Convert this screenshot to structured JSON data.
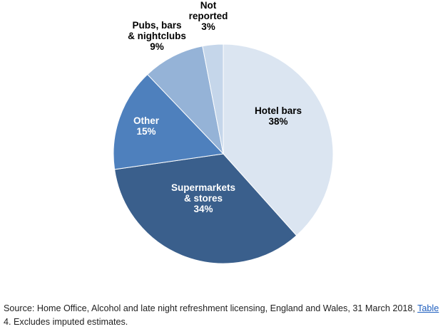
{
  "chart_data": {
    "type": "pie",
    "title": "",
    "start_angle_deg": 0,
    "direction": "clockwise",
    "slices": [
      {
        "label_lines": [
          "Hotel bars",
          "38%"
        ],
        "value": 38,
        "color": "#dbe5f1",
        "text_color": "#000000"
      },
      {
        "label_lines": [
          "Supermarkets",
          "& stores",
          "34%"
        ],
        "value": 34,
        "color": "#3a5f8c",
        "text_color": "#ffffff"
      },
      {
        "label_lines": [
          "Other",
          "15%"
        ],
        "value": 15,
        "color": "#4e80bd",
        "text_color": "#ffffff"
      },
      {
        "label_lines": [
          "Pubs, bars",
          "& nightclubs",
          "9%"
        ],
        "value": 9,
        "color": "#95b3d7",
        "text_color": "#000000"
      },
      {
        "label_lines": [
          "Not",
          "reported",
          "3%"
        ],
        "value": 3,
        "color": "#c5d6ea",
        "text_color": "#000000"
      }
    ]
  },
  "source": {
    "prefix": "Source: Home Office, Alcohol and late night refreshment licensing, England and Wales, 31 March 2018, ",
    "link_text": "Table",
    "suffix": " 4. Excludes imputed estimates."
  }
}
